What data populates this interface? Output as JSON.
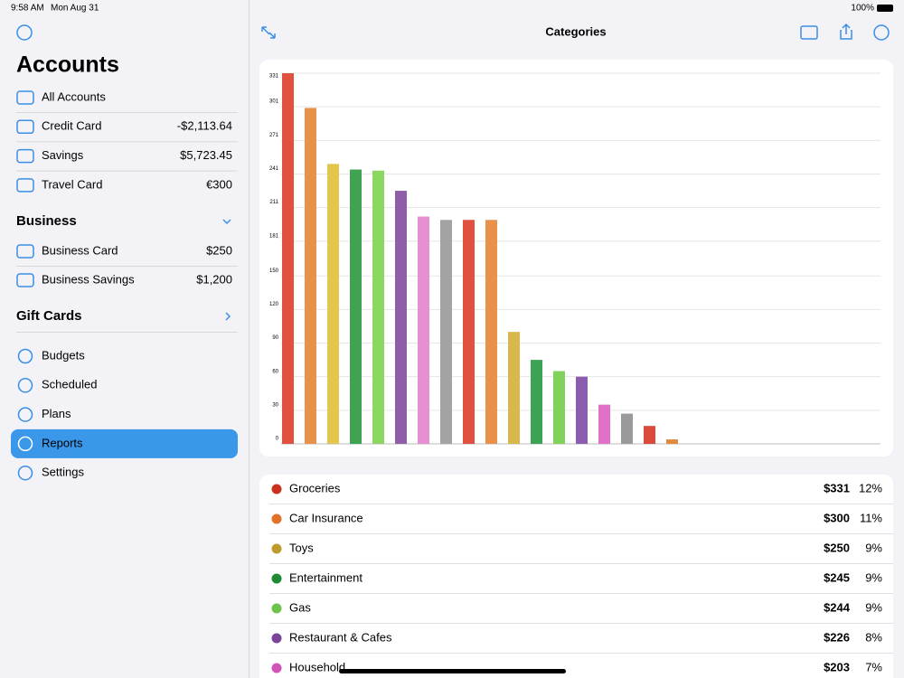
{
  "status": {
    "time": "9:58 AM",
    "date": "Mon Aug 31",
    "battery": "100%"
  },
  "sidebar": {
    "title": "Accounts",
    "accounts": [
      {
        "name": "All Accounts",
        "balance": null
      },
      {
        "name": "Credit Card",
        "balance": "-$2,113.64"
      },
      {
        "name": "Savings",
        "balance": "$5,723.45"
      },
      {
        "name": "Travel Card",
        "balance": "€300"
      }
    ],
    "business": {
      "title": "Business",
      "accounts": [
        {
          "name": "Business Card",
          "balance": "$250"
        },
        {
          "name": "Business Savings",
          "balance": "$1,200"
        }
      ]
    },
    "gift_cards": {
      "title": "Gift Cards"
    },
    "menu": [
      "Budgets",
      "Scheduled",
      "Plans",
      "Reports",
      "Settings"
    ],
    "selected": "Reports"
  },
  "header": {
    "title": "Categories"
  },
  "chart_data": {
    "type": "bar",
    "values": [
      331,
      300,
      250,
      245,
      244,
      226,
      203,
      200,
      200,
      200,
      100,
      75,
      65,
      60,
      35,
      27,
      16,
      4
    ],
    "colors": [
      "#e0513f",
      "#e8914a",
      "#e3c64e",
      "#3fa352",
      "#8ad862",
      "#8e5ea8",
      "#e690d2",
      "#a3a3a3",
      "#e0513f",
      "#e8914a",
      "#d8b84a",
      "#3da354",
      "#80d25a",
      "#8c5cb0",
      "#e070c8",
      "#9a9a9a",
      "#d94a3a",
      "#e08a40"
    ],
    "ylim": [
      0,
      331
    ],
    "yticks": [
      0,
      30,
      60,
      90,
      120,
      150,
      181,
      211,
      241,
      271,
      301,
      331
    ],
    "grid": true
  },
  "list": [
    {
      "name": "Groceries",
      "amount": "$331",
      "percent": "12%",
      "color": "#c8321f"
    },
    {
      "name": "Car Insurance",
      "amount": "$300",
      "percent": "11%",
      "color": "#e2722a"
    },
    {
      "name": "Toys",
      "amount": "$250",
      "percent": "9%",
      "color": "#bf9a2c"
    },
    {
      "name": "Entertainment",
      "amount": "$245",
      "percent": "9%",
      "color": "#1f8a34"
    },
    {
      "name": "Gas",
      "amount": "$244",
      "percent": "9%",
      "color": "#6cc44a"
    },
    {
      "name": "Restaurant & Cafes",
      "amount": "$226",
      "percent": "8%",
      "color": "#7a4596"
    },
    {
      "name": "Household",
      "amount": "$203",
      "percent": "7%",
      "color": "#d453b8"
    }
  ]
}
